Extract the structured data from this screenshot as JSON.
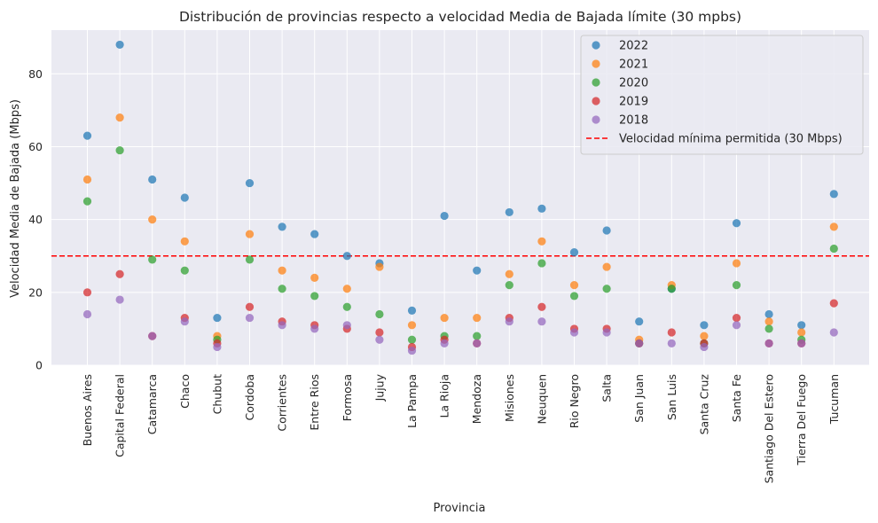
{
  "chart_data": {
    "type": "scatter",
    "title": "Distribución de provincias respecto a velocidad Media de Bajada límite (30 mpbs)",
    "xlabel": "Provincia",
    "ylabel": "Velocidad Media de Bajada (Mbps)",
    "ylim": [
      0,
      92
    ],
    "yticks": [
      0,
      20,
      40,
      60,
      80
    ],
    "grid": true,
    "legend_position": "top-right",
    "categories": [
      "Buenos Aires",
      "Capital Federal",
      "Catamarca",
      "Chaco",
      "Chubut",
      "Cordoba",
      "Corrientes",
      "Entre Rios",
      "Formosa",
      "Jujuy",
      "La Pampa",
      "La Rioja",
      "Mendoza",
      "Misiones",
      "Neuquen",
      "Rio Negro",
      "Salta",
      "San Juan",
      "San Luis",
      "Santa Cruz",
      "Santa Fe",
      "Santiago Del Estero",
      "Tierra Del Fuego",
      "Tucuman"
    ],
    "series": [
      {
        "name": "2022",
        "color": "#1f77b4",
        "values": [
          63,
          88,
          51,
          46,
          13,
          50,
          38,
          36,
          30,
          28,
          15,
          41,
          26,
          42,
          43,
          31,
          37,
          12,
          21,
          11,
          39,
          14,
          11,
          47
        ]
      },
      {
        "name": "2021",
        "color": "#ff7f0e",
        "values": [
          51,
          68,
          40,
          34,
          8,
          36,
          26,
          24,
          21,
          27,
          11,
          13,
          13,
          25,
          34,
          22,
          27,
          7,
          22,
          8,
          28,
          12,
          9,
          38
        ]
      },
      {
        "name": "2020",
        "color": "#2ca02c",
        "values": [
          45,
          59,
          29,
          26,
          7,
          29,
          21,
          19,
          16,
          14,
          7,
          8,
          8,
          22,
          28,
          19,
          21,
          6,
          21,
          6,
          22,
          10,
          7,
          32
        ]
      },
      {
        "name": "2019",
        "color": "#d62728",
        "values": [
          20,
          25,
          8,
          13,
          6,
          16,
          12,
          11,
          10,
          9,
          5,
          7,
          6,
          13,
          16,
          10,
          10,
          6,
          9,
          6,
          13,
          6,
          6,
          17
        ]
      },
      {
        "name": "2018",
        "color": "#9467bd",
        "values": [
          14,
          18,
          8,
          12,
          5,
          13,
          11,
          10,
          11,
          7,
          4,
          6,
          6,
          12,
          12,
          9,
          9,
          6,
          6,
          5,
          11,
          6,
          6,
          9
        ]
      }
    ],
    "threshold": {
      "value": 30,
      "label": "Velocidad mínima permitida (30 Mbps)",
      "color": "#ff0000"
    },
    "plot_background": "#eaeaf2"
  }
}
